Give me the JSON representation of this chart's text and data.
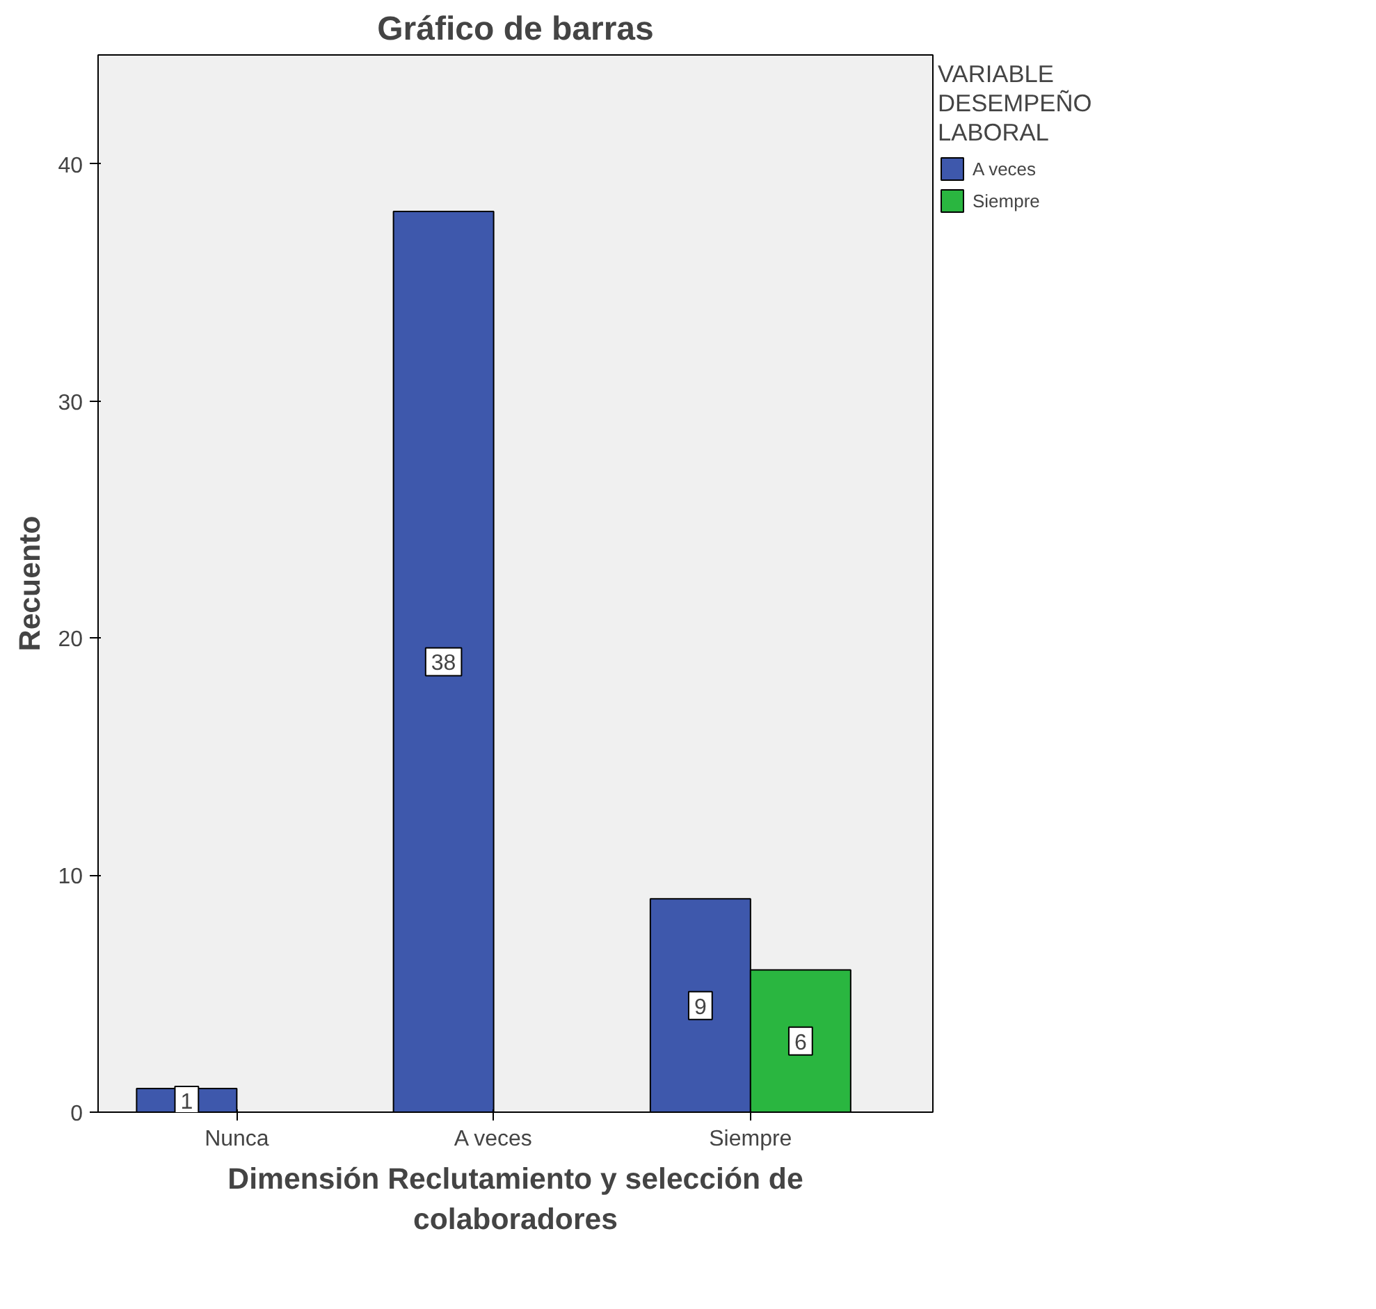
{
  "chart_data": {
    "type": "bar",
    "title": "Gráfico de barras",
    "xlabel": "Dimensión Reclutamiento y selección de colaboradores",
    "ylabel": "Recuento",
    "legend_title": "VARIABLE DESEMPEÑO LABORAL",
    "categories": [
      "Nunca",
      "A veces",
      "Siempre"
    ],
    "series": [
      {
        "name": "A veces",
        "color": "#3e58ac",
        "values": [
          1,
          38,
          9
        ]
      },
      {
        "name": "Siempre",
        "color": "#2ab640",
        "values": [
          null,
          null,
          6
        ]
      }
    ],
    "ylim": [
      0,
      44.6
    ],
    "yticks": [
      0,
      10,
      20,
      30,
      40
    ],
    "grid": false,
    "legend": "top right",
    "data_labels": true
  }
}
